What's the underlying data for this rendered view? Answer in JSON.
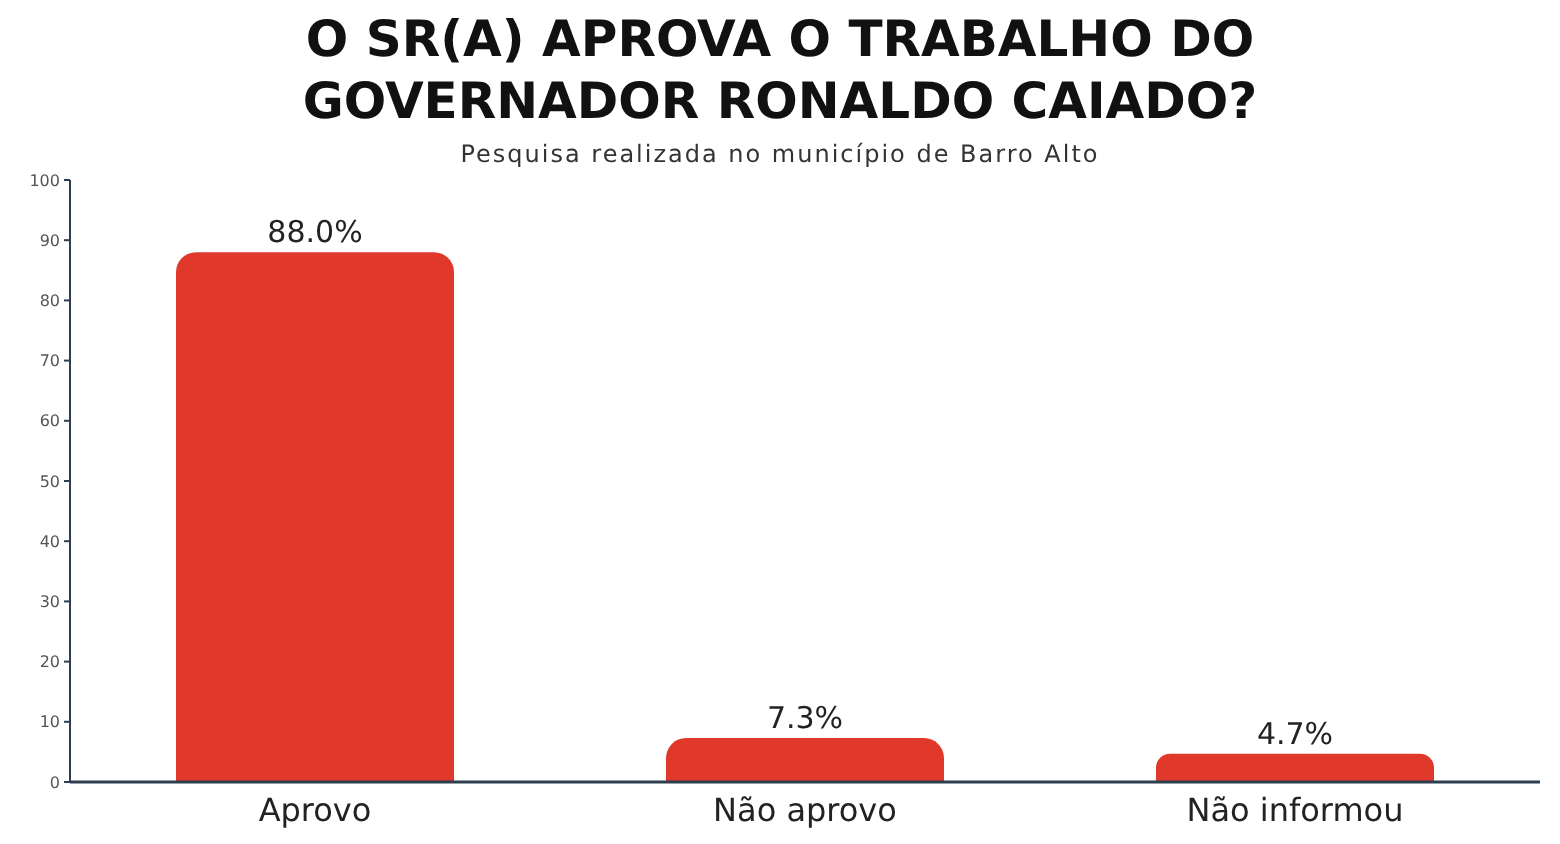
{
  "chart_data": {
    "type": "bar",
    "title": "O SR(A) APROVA O TRABALHO DO GOVERNADOR RONALDO CAIADO?",
    "subtitle": "Pesquisa realizada no município de Barro Alto",
    "categories": [
      "Aprovo",
      "Não aprovo",
      "Não informou"
    ],
    "values": [
      88.0,
      7.3,
      4.7
    ],
    "value_labels": [
      "88.0%",
      "7.3%",
      "4.7%"
    ],
    "color": "#e0382b",
    "ylim": [
      0,
      100
    ],
    "yticks": [
      0,
      10,
      20,
      30,
      40,
      50,
      60,
      70,
      80,
      90,
      100
    ]
  }
}
